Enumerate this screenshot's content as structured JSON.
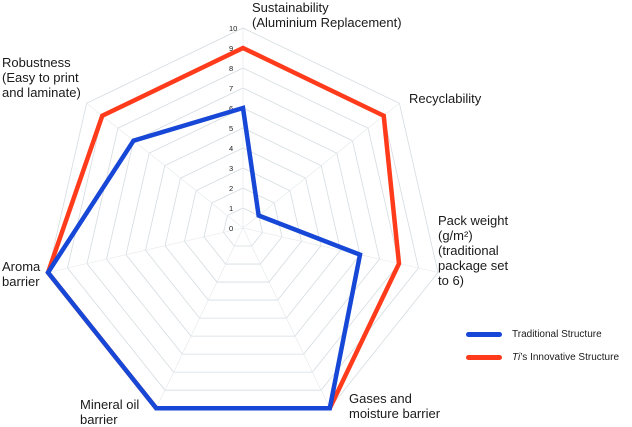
{
  "chart_data": {
    "type": "radar",
    "axes": [
      "Sustainability\n(Aluminium Replacement)",
      "Recyclability",
      "Pack weight\n(g/m²)\n(traditional\npackage set\nto 6)",
      "Gases and\nmoisture barrier",
      "Mineral oil\nbarrier",
      "Aroma\nbarrier",
      "Robustness\n(Easy to print\nand laminate)"
    ],
    "scale": {
      "min": 0,
      "max": 10,
      "ticks": [
        "0",
        "1",
        "2",
        "3",
        "4",
        "5",
        "6",
        "7",
        "8",
        "9",
        "10"
      ]
    },
    "series": [
      {
        "name": "Traditional Structure",
        "color": "#1747d6",
        "values": [
          6,
          1,
          6,
          10,
          10,
          10,
          7
        ]
      },
      {
        "name": "Ti’s Innovative Structure",
        "name_prefix": "Ti",
        "name_suffix": "’s Innovative Structure",
        "color": "#ff3b1c",
        "values": [
          9,
          9,
          8,
          10,
          10,
          10,
          9
        ]
      }
    ],
    "grid": true,
    "legend_position": "bottom-right"
  }
}
